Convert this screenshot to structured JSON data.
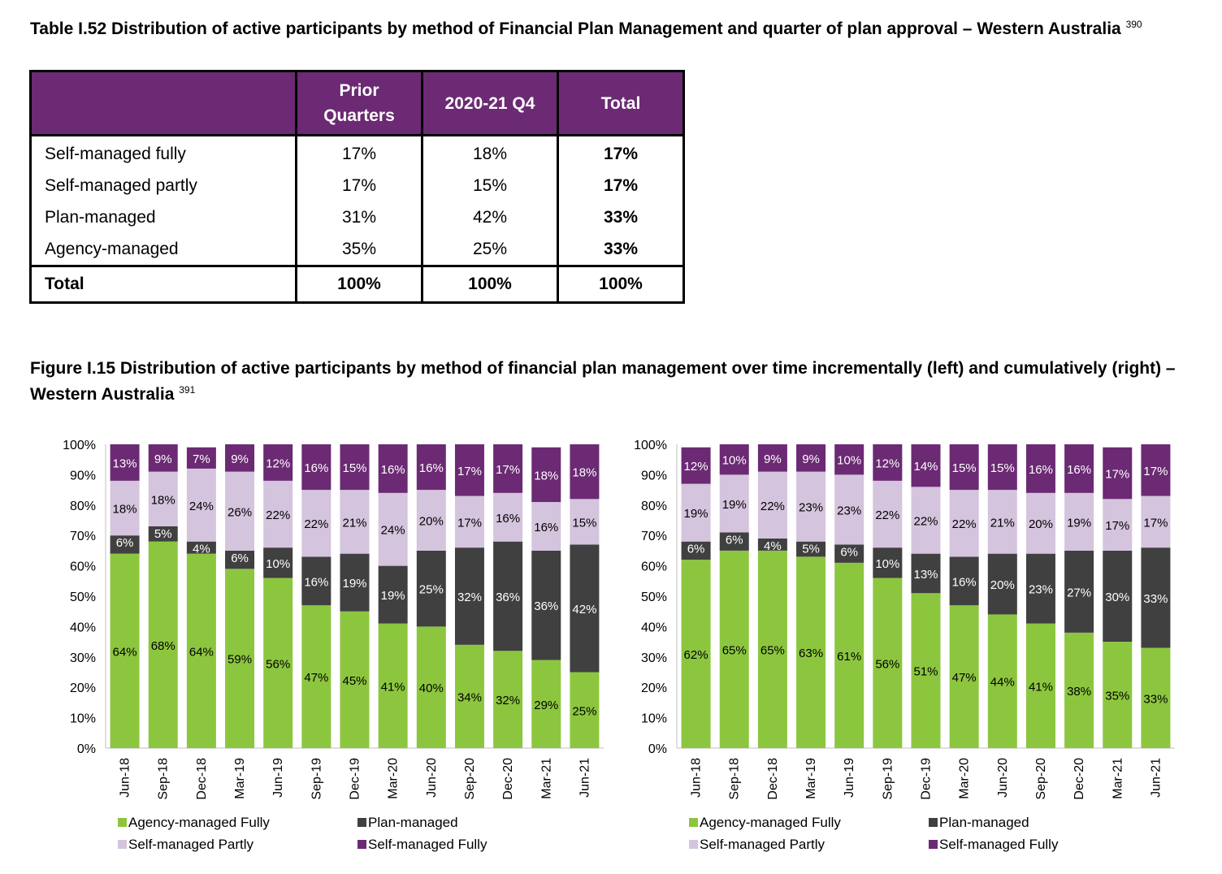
{
  "table": {
    "title": "Table I.52 Distribution of active participants by method of Financial Plan Management and quarter of plan approval – Western Australia",
    "footnote": "390",
    "header": [
      "",
      "Prior Quarters",
      "2020-21 Q4",
      "Total"
    ],
    "rows": [
      {
        "label": "Self-managed fully",
        "prior": "17%",
        "q4": "18%",
        "total": "17%"
      },
      {
        "label": "Self-managed partly",
        "prior": "17%",
        "q4": "15%",
        "total": "17%"
      },
      {
        "label": "Plan-managed",
        "prior": "31%",
        "q4": "42%",
        "total": "33%"
      },
      {
        "label": "Agency-managed",
        "prior": "35%",
        "q4": "25%",
        "total": "33%"
      }
    ],
    "total_row": {
      "label": "Total",
      "prior": "100%",
      "q4": "100%",
      "total": "100%"
    }
  },
  "figure": {
    "title": "Figure I.15 Distribution of active participants by method of financial plan management over time incrementally (left) and cumulatively (right) – Western Australia",
    "footnote": "391"
  },
  "colors": {
    "Agency-managed Fully": "#8cc63f",
    "Plan-managed": "#404040",
    "Self-managed Partly": "#d5c4dd",
    "Self-managed Fully": "#6b2a73"
  },
  "chart_data": [
    {
      "type": "bar",
      "stacked": true,
      "categories": [
        "Jun-18",
        "Sep-18",
        "Dec-18",
        "Mar-19",
        "Jun-19",
        "Sep-19",
        "Dec-19",
        "Mar-20",
        "Jun-20",
        "Sep-20",
        "Dec-20",
        "Mar-21",
        "Jun-21"
      ],
      "yticks": [
        "0%",
        "10%",
        "20%",
        "30%",
        "40%",
        "50%",
        "60%",
        "70%",
        "80%",
        "90%",
        "100%"
      ],
      "ylim": [
        0,
        100
      ],
      "legend_position": "bottom",
      "series": [
        {
          "name": "Agency-managed Fully",
          "values": [
            64,
            68,
            64,
            59,
            56,
            47,
            45,
            41,
            40,
            34,
            32,
            29,
            25
          ]
        },
        {
          "name": "Plan-managed",
          "values": [
            6,
            5,
            4,
            6,
            10,
            16,
            19,
            19,
            25,
            32,
            36,
            36,
            42
          ]
        },
        {
          "name": "Self-managed Partly",
          "values": [
            18,
            18,
            24,
            26,
            22,
            22,
            21,
            24,
            20,
            17,
            16,
            16,
            15
          ]
        },
        {
          "name": "Self-managed Fully",
          "values": [
            13,
            9,
            7,
            9,
            12,
            16,
            15,
            16,
            16,
            17,
            17,
            18,
            18
          ]
        }
      ]
    },
    {
      "type": "bar",
      "stacked": true,
      "categories": [
        "Jun-18",
        "Sep-18",
        "Dec-18",
        "Mar-19",
        "Jun-19",
        "Sep-19",
        "Dec-19",
        "Mar-20",
        "Jun-20",
        "Sep-20",
        "Dec-20",
        "Mar-21",
        "Jun-21"
      ],
      "yticks": [
        "0%",
        "10%",
        "20%",
        "30%",
        "40%",
        "50%",
        "60%",
        "70%",
        "80%",
        "90%",
        "100%"
      ],
      "ylim": [
        0,
        100
      ],
      "legend_position": "bottom",
      "series": [
        {
          "name": "Agency-managed Fully",
          "values": [
            62,
            65,
            65,
            63,
            61,
            56,
            51,
            47,
            44,
            41,
            38,
            35,
            33
          ]
        },
        {
          "name": "Plan-managed",
          "values": [
            6,
            6,
            4,
            5,
            6,
            10,
            13,
            16,
            20,
            23,
            27,
            30,
            33
          ]
        },
        {
          "name": "Self-managed Partly",
          "values": [
            19,
            19,
            22,
            23,
            23,
            22,
            22,
            22,
            21,
            20,
            19,
            17,
            17
          ]
        },
        {
          "name": "Self-managed Fully",
          "values": [
            12,
            10,
            9,
            9,
            10,
            12,
            14,
            15,
            15,
            16,
            16,
            17,
            17
          ]
        }
      ]
    }
  ]
}
